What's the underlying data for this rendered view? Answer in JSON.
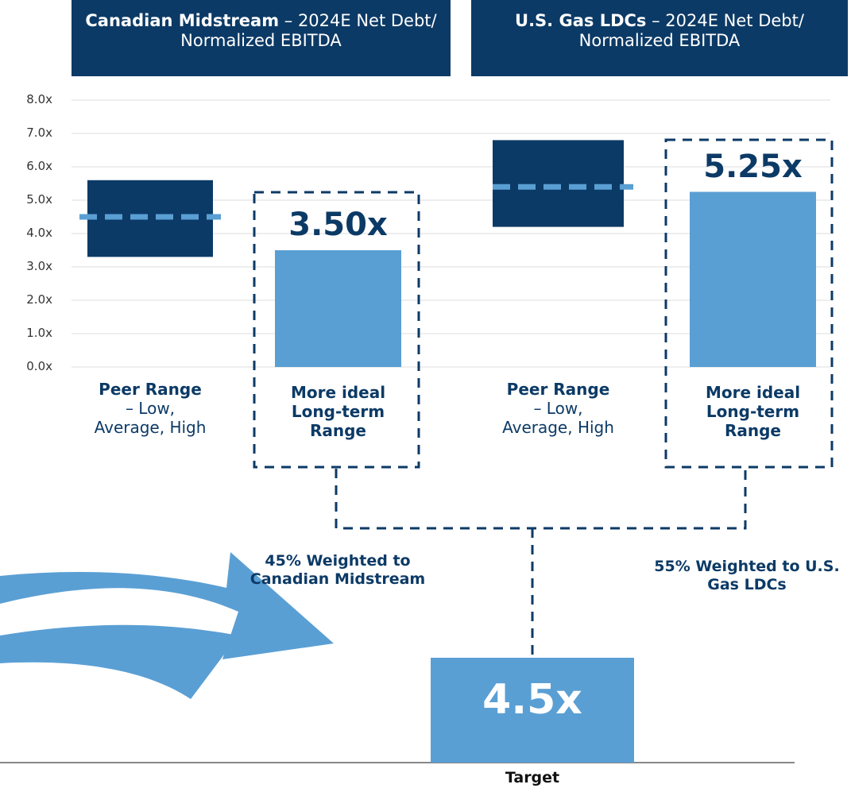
{
  "chart_data": {
    "type": "range_bar",
    "ylim": [
      0,
      8
    ],
    "yticks": [
      {
        "value": 0,
        "label": "0.0x"
      },
      {
        "value": 1,
        "label": "1.0x"
      },
      {
        "value": 2,
        "label": "2.0x"
      },
      {
        "value": 3,
        "label": "3.0x"
      },
      {
        "value": 4,
        "label": "4.0x"
      },
      {
        "value": 5,
        "label": "5.0x"
      },
      {
        "value": 6,
        "label": "6.0x"
      },
      {
        "value": 7,
        "label": "7.0x"
      },
      {
        "value": 8,
        "label": "8.0x"
      }
    ],
    "grid": true,
    "range_color": "#0c3a66",
    "ideal_color": "#5a9fd4",
    "avg_color": "#5a9fd4",
    "panels": [
      {
        "title_bold": "Canadian Midstream",
        "title_rest": "– 2024E Net Debt/ Normalized EBITDA",
        "peer_label_bold": "Peer Range",
        "peer_label_rest": "– Low, Average, High",
        "low": 3.3,
        "avg": 4.5,
        "high": 5.6,
        "ideal_label": "More ideal Long-term Range",
        "ideal_value": 3.5,
        "ideal_value_label": "3.50x",
        "weight_label": "45% Weighted to Canadian Midstream"
      },
      {
        "title_bold": "U.S. Gas LDCs",
        "title_rest": "– 2024E Net Debt/ Normalized EBITDA",
        "peer_label_bold": "Peer Range",
        "peer_label_rest": "– Low, Average, High",
        "low": 4.2,
        "avg": 5.4,
        "high": 6.8,
        "ideal_label": "More ideal Long-term Range",
        "ideal_value": 5.25,
        "ideal_value_label": "5.25x",
        "weight_label": "55% Weighted to U.S. Gas LDCs"
      }
    ],
    "target_label": "4.5x",
    "target_caption": "Target"
  }
}
